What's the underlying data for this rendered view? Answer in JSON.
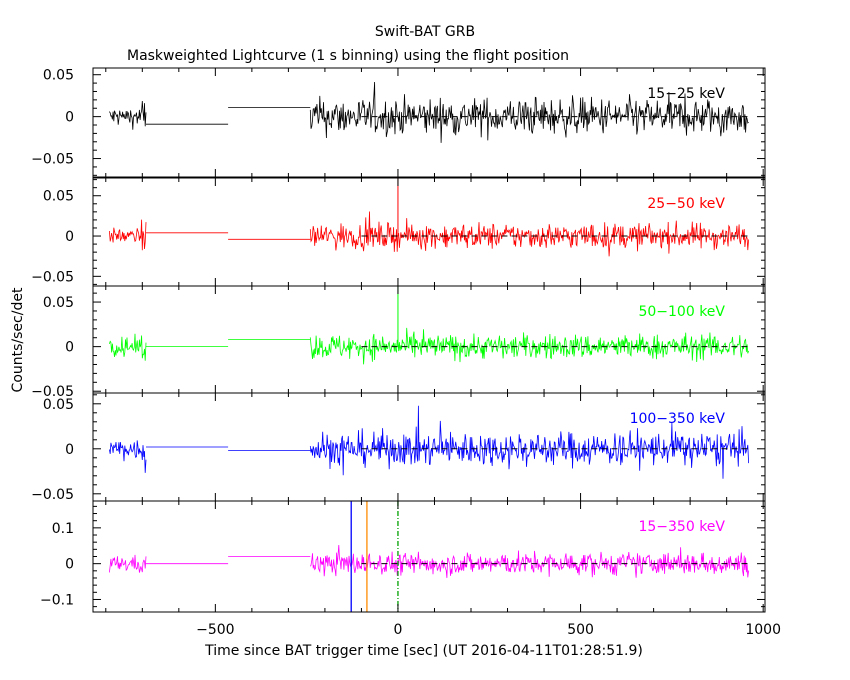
{
  "chart_data": {
    "type": "line",
    "title": "Swift-BAT GRB",
    "subtitle": "Maskweighted Lightcurve (1 s binning) using the flight position",
    "xlabel": "Time since BAT trigger time [sec] (UT 2016-04-11T01:28:51.9)",
    "ylabel": "Counts/sec/det",
    "xlim": [
      -835,
      1005
    ],
    "x_ticks": [
      -500,
      0,
      500,
      1000
    ],
    "x_tick_labels": [
      "−500",
      "0",
      "500",
      "1000"
    ],
    "grid": false,
    "panels": [
      {
        "band": "15-25 keV",
        "label": "15−25 keV",
        "color": "#000000",
        "ylim": [
          -0.072,
          0.058
        ],
        "y_ticks": [
          -0.05,
          0,
          0.05
        ],
        "y_tick_labels": [
          "−0.05",
          "0",
          "0.05"
        ],
        "segments": [
          {
            "kind": "noise",
            "x": [
              -790,
              -690
            ],
            "amp": 0.012
          },
          {
            "kind": "step",
            "x": [
              -690,
              -465
            ],
            "value": -0.009
          },
          {
            "kind": "step",
            "x": [
              -465,
              -240
            ],
            "value": 0.011
          },
          {
            "kind": "noise",
            "x": [
              -240,
              960
            ],
            "amp": 0.022
          }
        ]
      },
      {
        "band": "25-50 keV",
        "label": "25−50 keV",
        "color": "#ff0000",
        "ylim": [
          -0.062,
          0.072
        ],
        "y_ticks": [
          -0.05,
          0,
          0.05
        ],
        "y_tick_labels": [
          "−0.05",
          "0",
          "0.05"
        ],
        "segments": [
          {
            "kind": "noise",
            "x": [
              -790,
              -690
            ],
            "amp": 0.009
          },
          {
            "kind": "step",
            "x": [
              -690,
              -465
            ],
            "value": 0.004
          },
          {
            "kind": "step",
            "x": [
              -465,
              -240
            ],
            "value": -0.004
          },
          {
            "kind": "noise",
            "x": [
              -240,
              960
            ],
            "amp": 0.016
          }
        ]
      },
      {
        "band": "50-100 keV",
        "label": "50−100 keV",
        "color": "#00ff00",
        "ylim": [
          -0.052,
          0.068
        ],
        "y_ticks": [
          -0.05,
          0,
          0.05
        ],
        "y_tick_labels": [
          "−0.05",
          "0",
          "0.05"
        ],
        "segments": [
          {
            "kind": "noise",
            "x": [
              -790,
              -690
            ],
            "amp": 0.01
          },
          {
            "kind": "step",
            "x": [
              -690,
              -465
            ],
            "value": 0.0
          },
          {
            "kind": "step",
            "x": [
              -465,
              -240
            ],
            "value": 0.008
          },
          {
            "kind": "noise",
            "x": [
              -240,
              960
            ],
            "amp": 0.014
          }
        ]
      },
      {
        "band": "100-350 keV",
        "label": "100−350 keV",
        "color": "#0000ff",
        "ylim": [
          -0.058,
          0.062
        ],
        "y_ticks": [
          -0.05,
          0,
          0.05
        ],
        "y_tick_labels": [
          "−0.05",
          "0",
          "0.05"
        ],
        "segments": [
          {
            "kind": "noise",
            "x": [
              -790,
              -690
            ],
            "amp": 0.012
          },
          {
            "kind": "step",
            "x": [
              -690,
              -465
            ],
            "value": 0.002
          },
          {
            "kind": "step",
            "x": [
              -465,
              -240
            ],
            "value": -0.002
          },
          {
            "kind": "noise",
            "x": [
              -240,
              960
            ],
            "amp": 0.019
          }
        ]
      },
      {
        "band": "15-350 keV",
        "label": "15−350 keV",
        "color": "#ff00ff",
        "ylim": [
          -0.135,
          0.175
        ],
        "y_ticks": [
          -0.1,
          0,
          0.1
        ],
        "y_tick_labels": [
          "−0.1",
          "0",
          "0.1"
        ],
        "segments": [
          {
            "kind": "noise",
            "x": [
              -790,
              -690
            ],
            "amp": 0.022
          },
          {
            "kind": "step",
            "x": [
              -690,
              -465
            ],
            "value": 0.0
          },
          {
            "kind": "step",
            "x": [
              -465,
              -240
            ],
            "value": 0.02
          },
          {
            "kind": "noise",
            "x": [
              -240,
              960
            ],
            "amp": 0.032
          }
        ]
      }
    ],
    "dashed_zero_start": -100,
    "markers": [
      {
        "x": -128,
        "color": "#0000ff",
        "style": "solid"
      },
      {
        "x": -85,
        "color": "#ff8c00",
        "style": "solid"
      },
      {
        "x": 0,
        "color": "#00a000",
        "style": "dashdot"
      }
    ]
  }
}
